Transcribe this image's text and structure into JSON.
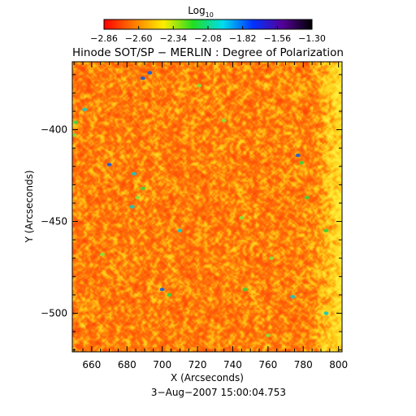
{
  "chart_data": {
    "type": "heatmap",
    "title": "Hinode SOT/SP − MERLIN : Degree of Polarization",
    "xlabel": "X (Arcseconds)",
    "ylabel": "Y (Arcseconds)",
    "date": "3−Aug−2007 15:00:04.753",
    "xlim": [
      649,
      802
    ],
    "ylim": [
      -521,
      -363
    ],
    "x_ticks": [
      {
        "value": 660,
        "label": "660"
      },
      {
        "value": 680,
        "label": "680"
      },
      {
        "value": 700,
        "label": "700"
      },
      {
        "value": 720,
        "label": "720"
      },
      {
        "value": 740,
        "label": "740"
      },
      {
        "value": 760,
        "label": "760"
      },
      {
        "value": 780,
        "label": "780"
      },
      {
        "value": 800,
        "label": "800"
      }
    ],
    "y_ticks": [
      {
        "value": -400,
        "label": "−400"
      },
      {
        "value": -450,
        "label": "−450"
      },
      {
        "value": -500,
        "label": "−500"
      }
    ],
    "colorbar": {
      "title_main": "Log",
      "title_sub": "10",
      "range": [
        -2.86,
        -1.3
      ],
      "ticks": [
        {
          "value": -2.86,
          "label": "−2.86"
        },
        {
          "value": -2.6,
          "label": "−2.60"
        },
        {
          "value": -2.34,
          "label": "−2.34"
        },
        {
          "value": -2.08,
          "label": "−2.08"
        },
        {
          "value": -1.82,
          "label": "−1.82"
        },
        {
          "value": -1.56,
          "label": "−1.56"
        },
        {
          "value": -1.3,
          "label": "−1.30"
        }
      ],
      "colors": [
        "#ff0000",
        "#ff7a00",
        "#ffee00",
        "#22dd22",
        "#00ddee",
        "#0033ff",
        "#550099",
        "#000000"
      ]
    },
    "field_description_colors": {
      "background_low": "#ff3c0a",
      "mid": "#ffb414",
      "high": "#ffe632",
      "features": [
        "#3cd23c",
        "#14c8c8",
        "#0a46d2"
      ]
    },
    "features": [
      {
        "x": 693,
        "y": -369,
        "v": -1.6
      },
      {
        "x": 689,
        "y": -372,
        "v": -1.7
      },
      {
        "x": 656,
        "y": -389,
        "v": -1.8
      },
      {
        "x": 651,
        "y": -396,
        "v": -1.9
      },
      {
        "x": 650,
        "y": -403,
        "v": -2.0
      },
      {
        "x": 670,
        "y": -419,
        "v": -1.7
      },
      {
        "x": 684,
        "y": -424,
        "v": -1.8
      },
      {
        "x": 689,
        "y": -432,
        "v": -1.9
      },
      {
        "x": 686,
        "y": -437,
        "v": -2.0
      },
      {
        "x": 683,
        "y": -442,
        "v": -1.8
      },
      {
        "x": 777,
        "y": -414,
        "v": -1.7
      },
      {
        "x": 779,
        "y": -418,
        "v": -1.9
      },
      {
        "x": 710,
        "y": -455,
        "v": -1.8
      },
      {
        "x": 745,
        "y": -448,
        "v": -2.0
      },
      {
        "x": 782,
        "y": -437,
        "v": -1.9
      },
      {
        "x": 700,
        "y": -487,
        "v": -1.7
      },
      {
        "x": 704,
        "y": -490,
        "v": -1.9
      },
      {
        "x": 747,
        "y": -487,
        "v": -1.9
      },
      {
        "x": 762,
        "y": -470,
        "v": -2.0
      },
      {
        "x": 774,
        "y": -491,
        "v": -1.8
      },
      {
        "x": 793,
        "y": -455,
        "v": -1.9
      },
      {
        "x": 793,
        "y": -500,
        "v": -1.8
      },
      {
        "x": 666,
        "y": -468,
        "v": -2.0
      },
      {
        "x": 760,
        "y": -512,
        "v": -2.0
      },
      {
        "x": 721,
        "y": -376,
        "v": -2.0
      },
      {
        "x": 735,
        "y": -395,
        "v": -2.0
      }
    ]
  }
}
